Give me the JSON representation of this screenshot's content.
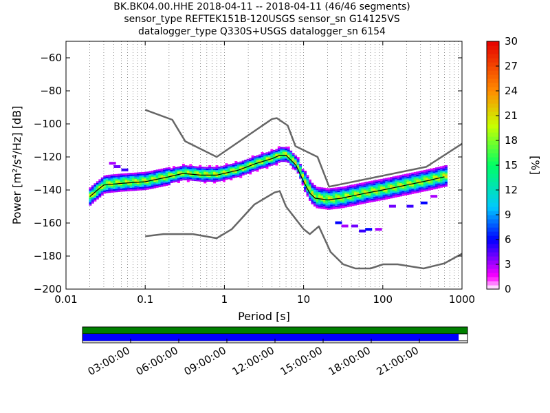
{
  "title_lines": [
    "BK.BK04.00.HHE   2018-04-11 -- 2018-04-11  (46/46 segments)",
    "sensor_type REFTEK151B-120USGS sensor_sn G14125VS",
    "datalogger_type Q330S+USGS datalogger_sn 6154"
  ],
  "chart_data": [
    {
      "type": "heatmap",
      "xlabel": "Period [s]",
      "ylabel": "Power [m²/s⁴/Hz] [dB]",
      "xscale": "log",
      "xlim": [
        0.01,
        1000
      ],
      "ylim": [
        -200,
        -50
      ],
      "xticks": [
        {
          "v": 0.01,
          "label": "0.01"
        },
        {
          "v": 0.1,
          "label": "0.1"
        },
        {
          "v": 1,
          "label": "1"
        },
        {
          "v": 10,
          "label": "10"
        },
        {
          "v": 100,
          "label": "100"
        },
        {
          "v": 1000,
          "label": "1000"
        }
      ],
      "yticks": [
        {
          "v": -60,
          "label": "−60"
        },
        {
          "v": -80,
          "label": "−80"
        },
        {
          "v": -100,
          "label": "−100"
        },
        {
          "v": -120,
          "label": "−120"
        },
        {
          "v": -140,
          "label": "−140"
        },
        {
          "v": -160,
          "label": "−160"
        },
        {
          "v": -180,
          "label": "−180"
        },
        {
          "v": -200,
          "label": "−200"
        }
      ],
      "grid": "vertical dotted",
      "colorbar": {
        "label": "[%]",
        "range": [
          0,
          30
        ],
        "ticks": [
          {
            "v": 0,
            "label": "0"
          },
          {
            "v": 3,
            "label": "3"
          },
          {
            "v": 6,
            "label": "6"
          },
          {
            "v": 9,
            "label": "9"
          },
          {
            "v": 12,
            "label": "12"
          },
          {
            "v": 15,
            "label": "15"
          },
          {
            "v": 18,
            "label": "18"
          },
          {
            "v": 21,
            "label": "21"
          },
          {
            "v": 24,
            "label": "24"
          },
          {
            "v": 27,
            "label": "27"
          },
          {
            "v": 30,
            "label": "30"
          }
        ]
      },
      "high_noise_model": [
        [
          0.1,
          -91.5
        ],
        [
          0.22,
          -97.5
        ],
        [
          0.32,
          -110.5
        ],
        [
          0.8,
          -120
        ],
        [
          4,
          -97
        ],
        [
          4.6,
          -96.5
        ],
        [
          6.3,
          -101
        ],
        [
          7.9,
          -113.5
        ],
        [
          15,
          -120
        ],
        [
          21,
          -138
        ],
        [
          354,
          -126
        ],
        [
          1000,
          -112
        ]
      ],
      "low_noise_model": [
        [
          0.1,
          -168
        ],
        [
          0.17,
          -166.7
        ],
        [
          0.4,
          -166.7
        ],
        [
          0.8,
          -169.2
        ],
        [
          1.24,
          -163.7
        ],
        [
          2.4,
          -148.7
        ],
        [
          4.3,
          -141.5
        ],
        [
          5,
          -140.7
        ],
        [
          6,
          -150
        ],
        [
          10,
          -163.7
        ],
        [
          12,
          -166.7
        ],
        [
          15.6,
          -162
        ],
        [
          21.9,
          -177.5
        ],
        [
          31.6,
          -185
        ],
        [
          45,
          -187.5
        ],
        [
          70,
          -187.5
        ],
        [
          101,
          -185
        ],
        [
          154,
          -185
        ],
        [
          328,
          -187.5
        ],
        [
          600,
          -184.4
        ],
        [
          1000,
          -178.6
        ]
      ],
      "mean_curve": [
        [
          0.02,
          -144
        ],
        [
          0.025,
          -140
        ],
        [
          0.03,
          -137
        ],
        [
          0.05,
          -136
        ],
        [
          0.1,
          -135
        ],
        [
          0.2,
          -132
        ],
        [
          0.3,
          -130
        ],
        [
          0.5,
          -131
        ],
        [
          0.8,
          -131
        ],
        [
          1.5,
          -128
        ],
        [
          2.5,
          -124
        ],
        [
          4,
          -121
        ],
        [
          5,
          -119
        ],
        [
          6,
          -119
        ],
        [
          8,
          -125
        ],
        [
          10,
          -135
        ],
        [
          12,
          -142
        ],
        [
          14,
          -145
        ],
        [
          20,
          -146
        ],
        [
          30,
          -145
        ],
        [
          60,
          -142
        ],
        [
          100,
          -140
        ],
        [
          200,
          -137
        ],
        [
          400,
          -134
        ],
        [
          600,
          -132
        ]
      ]
    },
    {
      "type": "bar",
      "xticks": [
        "03:00:00",
        "06:00:00",
        "09:00:00",
        "12:00:00",
        "15:00:00",
        "18:00:00",
        "21:00:00"
      ],
      "xrange_hours": [
        0,
        24
      ],
      "tracks": [
        {
          "color": "#008000",
          "start": 0,
          "end": 24
        },
        {
          "color": "#0000ff",
          "start": 0,
          "end": 23.45
        }
      ]
    }
  ]
}
